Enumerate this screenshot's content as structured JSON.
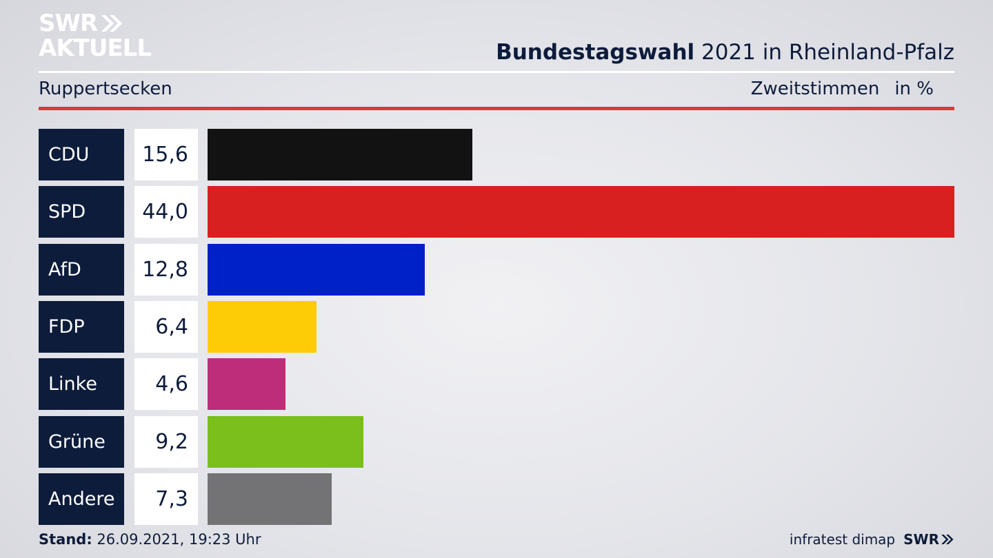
{
  "brand": {
    "logo_line1": "SWR",
    "logo_line2": "AKTUELL",
    "footer_logo": "SWR"
  },
  "header": {
    "title_bold": "Bundestagswahl",
    "title_rest": " 2021 in Rheinland-Pfalz",
    "location": "Ruppertsecken",
    "measure": "Zweitstimmen",
    "unit": "in %"
  },
  "footer": {
    "stand_label": "Stand:",
    "stand_value": " 26.09.2021, 19:23 Uhr",
    "source": "infratest dimap"
  },
  "chart_data": {
    "type": "bar",
    "orientation": "horizontal",
    "categories": [
      "CDU",
      "SPD",
      "AfD",
      "FDP",
      "Linke",
      "Grüne",
      "Andere"
    ],
    "values": [
      15.6,
      44.0,
      12.8,
      6.4,
      4.6,
      9.2,
      7.3
    ],
    "value_labels": [
      "15,6",
      "44,0",
      "12,8",
      "6,4",
      "4,6",
      "9,2",
      "7,3"
    ],
    "colors": [
      "#121212",
      "#d82020",
      "#0020c8",
      "#fecc06",
      "#be2e78",
      "#7abf1c",
      "#737375"
    ],
    "xlim": [
      0,
      44.0
    ],
    "grid": false
  }
}
